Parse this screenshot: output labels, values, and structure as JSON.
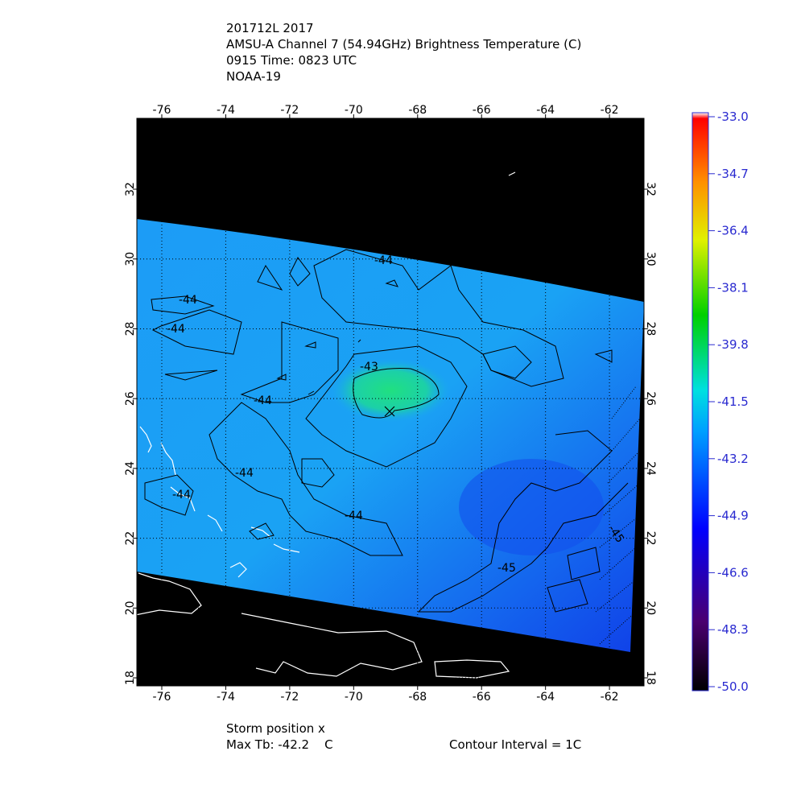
{
  "header": {
    "lines": [
      "201712L 2017",
      "AMSU-A Channel 7 (54.94GHz) Brightness Temperature (C)",
      "0915 Time: 0823 UTC",
      "NOAA-19"
    ]
  },
  "map": {
    "lon_range": [
      -76.78,
      -60.92
    ],
    "lat_range": [
      17.77,
      34.03
    ],
    "lon_ticks": [
      -76,
      -74,
      -72,
      -70,
      -68,
      -66,
      -64,
      -62
    ],
    "lat_ticks": [
      18,
      20,
      22,
      24,
      26,
      28,
      30,
      32
    ],
    "contour_labels": [
      "-44",
      "-44",
      "-44",
      "-43",
      "-44",
      "-44",
      "-44",
      "-44",
      "-45",
      "-45"
    ]
  },
  "colorbar": {
    "range": [
      -50,
      -33
    ],
    "ticks": [
      {
        "value": -33,
        "label": "-33.0"
      },
      {
        "value": -34.7,
        "label": "-34.7"
      },
      {
        "value": -36.4,
        "label": "-36.4"
      },
      {
        "value": -38.1,
        "label": "-38.1"
      },
      {
        "value": -39.8,
        "label": "-39.8"
      },
      {
        "value": -41.5,
        "label": "-41.5"
      },
      {
        "value": -43.2,
        "label": "-43.2"
      },
      {
        "value": -44.9,
        "label": "-44.9"
      },
      {
        "value": -46.6,
        "label": "-46.6"
      },
      {
        "value": -48.3,
        "label": "-48.3"
      },
      {
        "value": -50,
        "label": "-50.0"
      }
    ]
  },
  "footer": {
    "storm": "Storm position x",
    "max_tb": "Max Tb: -42.2    C",
    "interval": "Contour Interval = 1C"
  }
}
